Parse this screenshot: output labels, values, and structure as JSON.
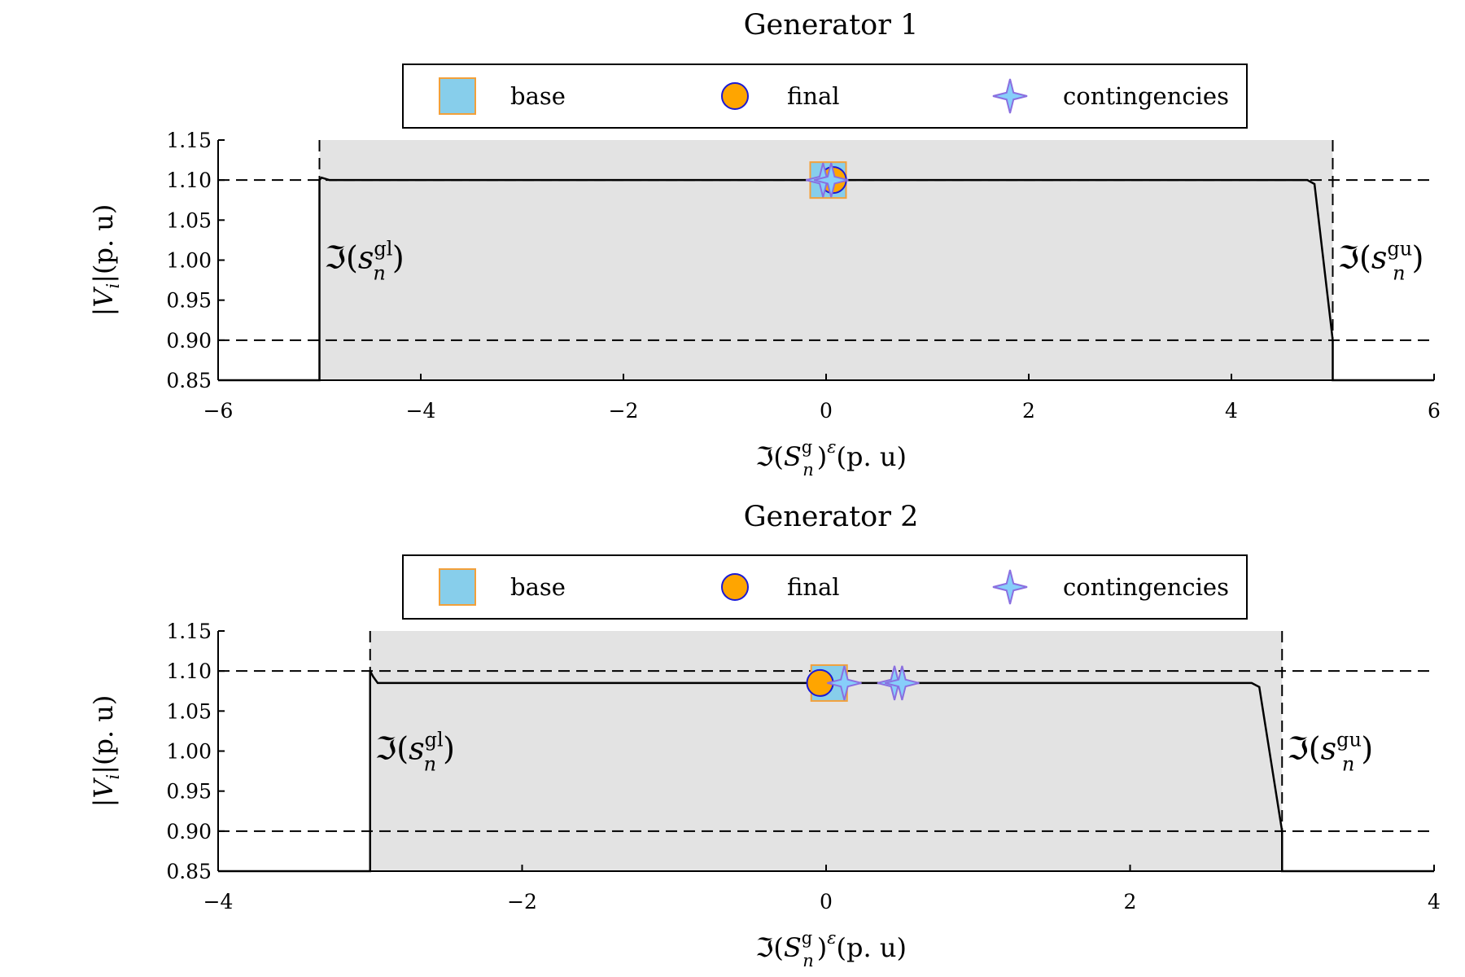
{
  "chart_data": [
    {
      "type": "line",
      "title": "Generator 1",
      "xlabel": {
        "prefix": "ℑ",
        "base": "S",
        "sup": "g",
        "sub": "n",
        "outer_sup": "ε",
        "unit": "(p. u)"
      },
      "ylabel": {
        "text": "|V",
        "sub": "i",
        "unit": "|(p. u)"
      },
      "xlim": [
        -6,
        6
      ],
      "ylim": [
        0.85,
        1.15
      ],
      "xticks": [
        -6,
        -4,
        -2,
        0,
        2,
        4,
        6
      ],
      "xtick_labels": [
        "−6",
        "−4",
        "−2",
        "0",
        "2",
        "4",
        "6"
      ],
      "yticks": [
        0.85,
        0.9,
        0.95,
        1.0,
        1.05,
        1.1,
        1.15
      ],
      "ytick_labels": [
        "0.85",
        "0.90",
        "0.95",
        "1.00",
        "1.05",
        "1.10",
        "1.15"
      ],
      "feasible_region": {
        "x": [
          -5,
          5
        ],
        "y": [
          0.85,
          1.15
        ],
        "color": "#e3e3e3"
      },
      "hlines": [
        0.9,
        1.1
      ],
      "vlines": [
        -5,
        5
      ],
      "bounds": [
        {
          "prefix": "ℑ",
          "base": "s",
          "sup": "gl",
          "sub": "n"
        },
        {
          "prefix": "ℑ",
          "base": "s",
          "sup": "gu",
          "sub": "n"
        }
      ],
      "series": [
        {
          "type": "line",
          "x": [
            -6,
            -5,
            -5,
            -4.98,
            -4.9,
            0,
            4.75,
            4.82,
            5,
            5,
            6
          ],
          "y": [
            0.85,
            0.85,
            1.1,
            1.103,
            1.1,
            1.1,
            1.1,
            1.095,
            0.9,
            0.85,
            0.85
          ]
        },
        {
          "name": "base",
          "type": "marker",
          "marker": "square",
          "x": [
            0.02
          ],
          "y": [
            1.1
          ]
        },
        {
          "name": "final",
          "type": "marker",
          "marker": "circle",
          "x": [
            0.07
          ],
          "y": [
            1.1
          ]
        },
        {
          "name": "contingencies",
          "type": "marker",
          "marker": "star4",
          "x": [
            -0.03,
            0.05
          ],
          "y": [
            1.1,
            1.1
          ]
        }
      ],
      "legend": {
        "position": "top-center",
        "entries": [
          {
            "label": "base",
            "marker": "square"
          },
          {
            "label": "final",
            "marker": "circle"
          },
          {
            "label": "contingencies",
            "marker": "star4"
          }
        ]
      },
      "grid": false
    },
    {
      "type": "line",
      "title": "Generator 2",
      "xlabel": {
        "prefix": "ℑ",
        "base": "S",
        "sup": "g",
        "sub": "n",
        "outer_sup": "ε",
        "unit": "(p. u)"
      },
      "ylabel": {
        "text": "|V",
        "sub": "i",
        "unit": "|(p. u)"
      },
      "xlim": [
        -4,
        4
      ],
      "ylim": [
        0.85,
        1.15
      ],
      "xticks": [
        -4,
        -2,
        0,
        2,
        4
      ],
      "xtick_labels": [
        "−4",
        "−2",
        "0",
        "2",
        "4"
      ],
      "yticks": [
        0.85,
        0.9,
        0.95,
        1.0,
        1.05,
        1.1,
        1.15
      ],
      "ytick_labels": [
        "0.85",
        "0.90",
        "0.95",
        "1.00",
        "1.05",
        "1.10",
        "1.15"
      ],
      "feasible_region": {
        "x": [
          -3,
          3
        ],
        "y": [
          0.85,
          1.15
        ],
        "color": "#e3e3e3"
      },
      "hlines": [
        0.9,
        1.1
      ],
      "vlines": [
        -3,
        3
      ],
      "bounds": [
        {
          "prefix": "ℑ",
          "base": "s",
          "sup": "gl",
          "sub": "n"
        },
        {
          "prefix": "ℑ",
          "base": "s",
          "sup": "gu",
          "sub": "n"
        }
      ],
      "series": [
        {
          "type": "line",
          "x": [
            -4,
            -3,
            -3,
            -2.98,
            -2.95,
            0,
            2.8,
            2.85,
            3,
            3,
            4
          ],
          "y": [
            0.85,
            0.85,
            1.1,
            1.093,
            1.085,
            1.085,
            1.085,
            1.08,
            0.9,
            0.85,
            0.85
          ]
        },
        {
          "name": "base",
          "type": "marker",
          "marker": "square",
          "x": [
            0.02
          ],
          "y": [
            1.085
          ]
        },
        {
          "name": "final",
          "type": "marker",
          "marker": "circle",
          "x": [
            -0.04
          ],
          "y": [
            1.085
          ]
        },
        {
          "name": "contingencies",
          "type": "marker",
          "marker": "star4",
          "x": [
            0.12,
            0.45,
            0.5
          ],
          "y": [
            1.085,
            1.085,
            1.085
          ]
        }
      ],
      "legend": {
        "position": "top-center",
        "entries": [
          {
            "label": "base",
            "marker": "square"
          },
          {
            "label": "final",
            "marker": "circle"
          },
          {
            "label": "contingencies",
            "marker": "star4"
          }
        ]
      },
      "grid": false
    }
  ],
  "colors": {
    "region": "#e3e3e3",
    "line": "#000000",
    "base_fill": "#87ceeb",
    "base_stroke": "#f2a03a",
    "final_fill": "#ffa500",
    "final_stroke": "#1a1ad6",
    "star_fill": "#87cefa",
    "star_stroke": "#8a6fe0"
  },
  "icons": {
    "square": "square-marker-icon",
    "circle": "circle-marker-icon",
    "star4": "four-point-star-icon"
  }
}
